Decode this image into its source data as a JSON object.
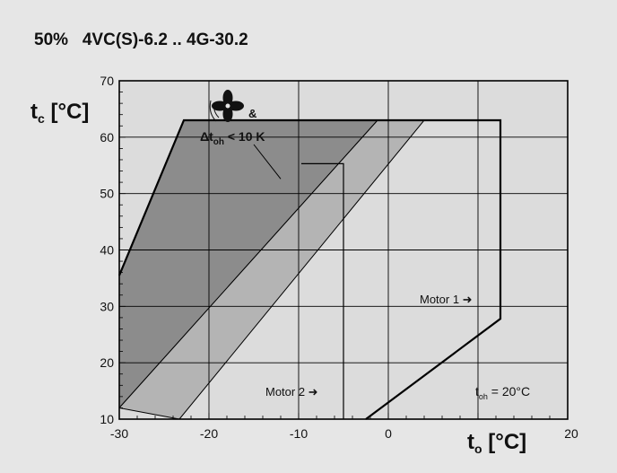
{
  "title": "50%   4VC(S)-6.2 .. 4G-30.2",
  "chart_data": {
    "type": "area",
    "title": "50%   4VC(S)-6.2 .. 4G-30.2",
    "xlabel": {
      "main": "t",
      "sub": "o",
      "unit": " [°C]"
    },
    "ylabel": {
      "main": "t",
      "sub": "c",
      "unit": " [°C]"
    },
    "xlim": [
      -30,
      20
    ],
    "ylim": [
      10,
      70
    ],
    "xticks": [
      "-30",
      "-20",
      "-10",
      "0",
      "20"
    ],
    "xtick_values": [
      -30,
      -20,
      -10,
      0,
      20
    ],
    "yticks": [
      "10",
      "20",
      "30",
      "40",
      "50",
      "60",
      "70"
    ],
    "ytick_values": [
      10,
      20,
      30,
      40,
      50,
      60,
      70
    ],
    "grid": true,
    "colors": {
      "plot_bg": "#dcdcdc",
      "dark_band": "#8c8c8c",
      "medium_band": "#b4b4b4",
      "outline": "#000000"
    },
    "regions": [
      {
        "id": "dark-band",
        "fill": "#8c8c8c",
        "points": [
          [
            -30,
            35.5
          ],
          [
            -22.8,
            63
          ],
          [
            -1.2,
            63
          ],
          [
            -30,
            12
          ]
        ]
      },
      {
        "id": "medium-band",
        "fill": "#b4b4b4",
        "points": [
          [
            -1.2,
            63
          ],
          [
            0.2,
            63
          ],
          [
            4,
            63
          ],
          [
            -23.3,
            10
          ],
          [
            -30,
            12
          ]
        ]
      }
    ],
    "envelope": [
      [
        -30,
        35.5
      ],
      [
        -22.8,
        63
      ],
      [
        12.5,
        63
      ],
      [
        12.5,
        27.8
      ],
      [
        -2.5,
        10
      ]
    ],
    "inner_boundary": [
      [
        -5,
        10
      ],
      [
        -5,
        55.3
      ],
      [
        -9.7,
        55.3
      ]
    ],
    "annotations": {
      "fan_suffix": "&",
      "delta_prefix": "Δt",
      "delta_sub": "oh",
      "delta_suffix": " < 10 K",
      "motor1": "Motor 1 ➜",
      "motor2": "Motor 2 ➜",
      "toh_prefix": "t",
      "toh_sub": "oh",
      "toh_suffix": " = 20°C"
    }
  }
}
